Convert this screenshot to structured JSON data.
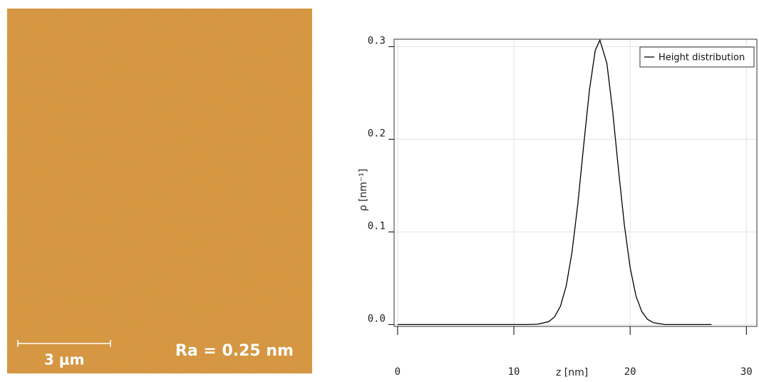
{
  "image": {
    "scale_bar": "3 μm",
    "roughness": "Ra = 0.25 nm"
  },
  "chart_data": {
    "type": "line",
    "xlabel": "z [nm]",
    "ylabel": "ρ [nm⁻¹]",
    "x": [
      0,
      10,
      11,
      12,
      13,
      13.5,
      14,
      14.5,
      15,
      15.5,
      16,
      16.5,
      17,
      17.4,
      18,
      18.5,
      19,
      19.5,
      20,
      20.5,
      21,
      21.5,
      22,
      23,
      27
    ],
    "series": [
      {
        "name": "Height distribution",
        "color": "#000000",
        "values": [
          0,
          0,
          0,
          0.0003,
          0.0031,
          0.0083,
          0.0196,
          0.0415,
          0.078,
          0.13,
          0.193,
          0.253,
          0.296,
          0.307,
          0.282,
          0.23,
          0.167,
          0.108,
          0.0615,
          0.031,
          0.014,
          0.0056,
          0.002,
          0,
          0
        ]
      }
    ],
    "xlim": [
      -0.3,
      30.9
    ],
    "ylim": [
      -0.002,
      0.308
    ],
    "xticks": [
      0,
      10,
      20,
      30
    ],
    "yticks": [
      {
        "value": 0,
        "label": "0.0"
      },
      0.1,
      0.2,
      0.3
    ],
    "grid": true,
    "legend": "upper right"
  }
}
